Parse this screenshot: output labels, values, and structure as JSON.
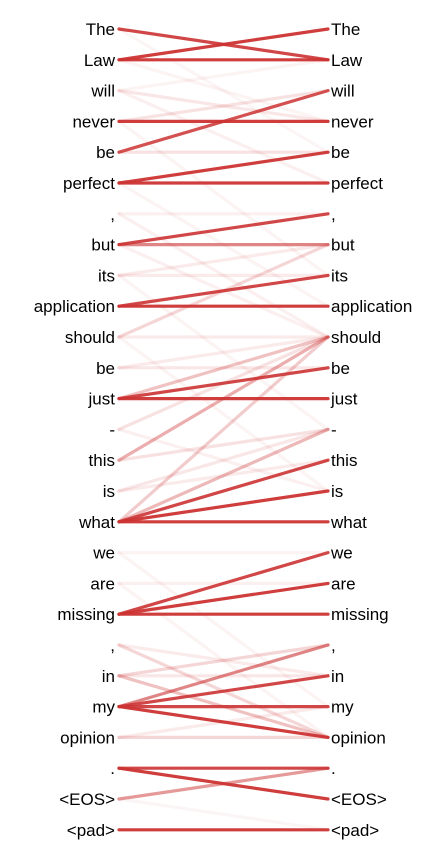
{
  "tokens": [
    "The",
    "Law",
    "will",
    "never",
    "be",
    "perfect",
    ",",
    "but",
    "its",
    "application",
    "should",
    "be",
    "just",
    "-",
    "this",
    "is",
    "what",
    "we",
    "are",
    "missing",
    ",",
    "in",
    "my",
    "opinion",
    ".",
    "<EOS>",
    "<pad>"
  ],
  "colors": {
    "strong": "#cc3333",
    "text": "#000000"
  },
  "links": [
    {
      "from": 0,
      "to": 1,
      "w": 0.9
    },
    {
      "from": 0,
      "to": 4,
      "w": 0.05
    },
    {
      "from": 1,
      "to": 0,
      "w": 0.95
    },
    {
      "from": 1,
      "to": 1,
      "w": 0.95
    },
    {
      "from": 1,
      "to": 3,
      "w": 0.06
    },
    {
      "from": 2,
      "to": 3,
      "w": 0.12
    },
    {
      "from": 2,
      "to": 5,
      "w": 0.08
    },
    {
      "from": 2,
      "to": 1,
      "w": 0.06
    },
    {
      "from": 3,
      "to": 3,
      "w": 0.95
    },
    {
      "from": 3,
      "to": 2,
      "w": 0.15
    },
    {
      "from": 3,
      "to": 8,
      "w": 0.06
    },
    {
      "from": 4,
      "to": 2,
      "w": 0.85
    },
    {
      "from": 4,
      "to": 4,
      "w": 0.15
    },
    {
      "from": 5,
      "to": 5,
      "w": 0.95
    },
    {
      "from": 5,
      "to": 4,
      "w": 0.95
    },
    {
      "from": 5,
      "to": 9,
      "w": 0.06
    },
    {
      "from": 6,
      "to": 6,
      "w": 0.08
    },
    {
      "from": 6,
      "to": 10,
      "w": 0.08
    },
    {
      "from": 7,
      "to": 6,
      "w": 0.9
    },
    {
      "from": 7,
      "to": 7,
      "w": 0.6
    },
    {
      "from": 7,
      "to": 10,
      "w": 0.08
    },
    {
      "from": 8,
      "to": 8,
      "w": 0.1
    },
    {
      "from": 8,
      "to": 7,
      "w": 0.1
    },
    {
      "from": 8,
      "to": 13,
      "w": 0.06
    },
    {
      "from": 9,
      "to": 9,
      "w": 0.95
    },
    {
      "from": 9,
      "to": 8,
      "w": 0.9
    },
    {
      "from": 10,
      "to": 10,
      "w": 0.1
    },
    {
      "from": 10,
      "to": 7,
      "w": 0.2
    },
    {
      "from": 10,
      "to": 15,
      "w": 0.06
    },
    {
      "from": 11,
      "to": 10,
      "w": 0.1
    },
    {
      "from": 11,
      "to": 11,
      "w": 0.12
    },
    {
      "from": 12,
      "to": 12,
      "w": 0.95
    },
    {
      "from": 12,
      "to": 11,
      "w": 0.9
    },
    {
      "from": 12,
      "to": 10,
      "w": 0.3
    },
    {
      "from": 13,
      "to": 10,
      "w": 0.15
    },
    {
      "from": 13,
      "to": 15,
      "w": 0.08
    },
    {
      "from": 14,
      "to": 10,
      "w": 0.4
    },
    {
      "from": 14,
      "to": 13,
      "w": 0.15
    },
    {
      "from": 15,
      "to": 13,
      "w": 0.12
    },
    {
      "from": 15,
      "to": 14,
      "w": 0.1
    },
    {
      "from": 16,
      "to": 16,
      "w": 0.95
    },
    {
      "from": 16,
      "to": 15,
      "w": 0.95
    },
    {
      "from": 16,
      "to": 14,
      "w": 0.9
    },
    {
      "from": 16,
      "to": 13,
      "w": 0.35
    },
    {
      "from": 16,
      "to": 10,
      "w": 0.25
    },
    {
      "from": 17,
      "to": 17,
      "w": 0.06
    },
    {
      "from": 17,
      "to": 22,
      "w": 0.06
    },
    {
      "from": 18,
      "to": 18,
      "w": 0.08
    },
    {
      "from": 18,
      "to": 23,
      "w": 0.06
    },
    {
      "from": 19,
      "to": 19,
      "w": 0.95
    },
    {
      "from": 19,
      "to": 18,
      "w": 0.95
    },
    {
      "from": 19,
      "to": 17,
      "w": 0.9
    },
    {
      "from": 20,
      "to": 23,
      "w": 0.2
    },
    {
      "from": 20,
      "to": 21,
      "w": 0.1
    },
    {
      "from": 21,
      "to": 20,
      "w": 0.2
    },
    {
      "from": 21,
      "to": 23,
      "w": 0.3
    },
    {
      "from": 21,
      "to": 21,
      "w": 0.12
    },
    {
      "from": 22,
      "to": 20,
      "w": 0.6
    },
    {
      "from": 22,
      "to": 21,
      "w": 0.9
    },
    {
      "from": 22,
      "to": 22,
      "w": 0.9
    },
    {
      "from": 22,
      "to": 23,
      "w": 0.95
    },
    {
      "from": 23,
      "to": 23,
      "w": 0.2
    },
    {
      "from": 23,
      "to": 22,
      "w": 0.1
    },
    {
      "from": 24,
      "to": 24,
      "w": 0.9
    },
    {
      "from": 24,
      "to": 25,
      "w": 0.95
    },
    {
      "from": 25,
      "to": 24,
      "w": 0.5
    },
    {
      "from": 25,
      "to": 26,
      "w": 0.05
    },
    {
      "from": 26,
      "to": 26,
      "w": 0.95
    }
  ]
}
